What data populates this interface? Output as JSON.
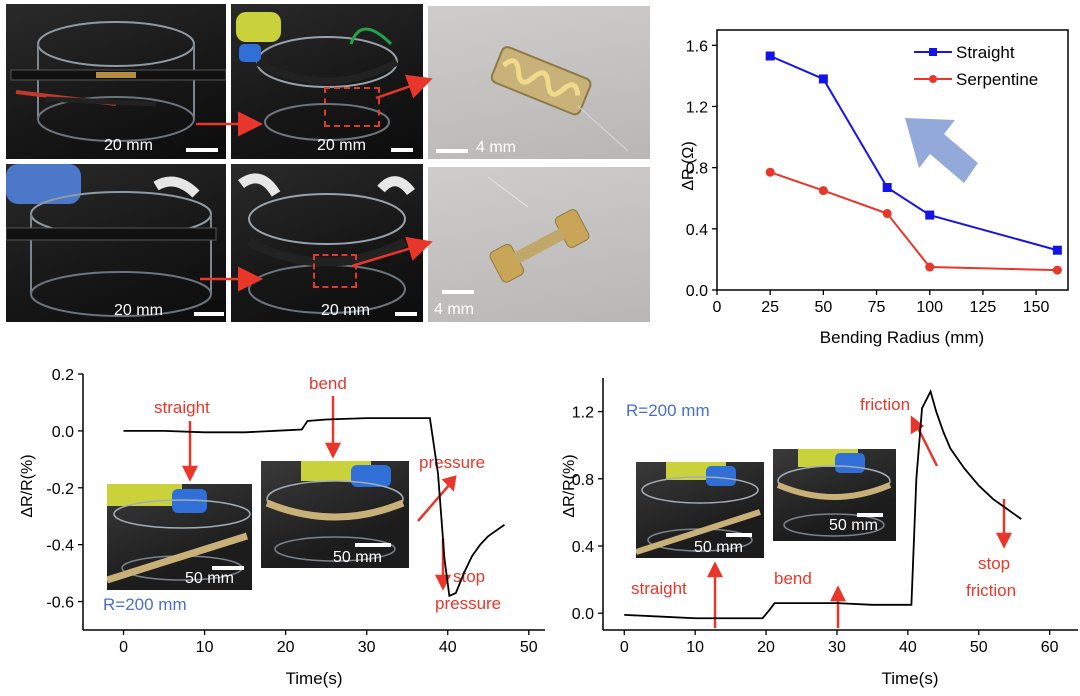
{
  "photos": {
    "scale_top_left": "20 mm",
    "scale_top_mid": "20 mm",
    "scale_top_right": "4 mm",
    "scale_bottom_left": "20 mm",
    "scale_bottom_mid": "20 mm",
    "scale_bottom_right": "4 mm"
  },
  "insets": {
    "left_a_scale": "50 mm",
    "left_b_scale": "50 mm",
    "right_a_scale": "50 mm",
    "right_b_scale": "50 mm"
  },
  "colors": {
    "straight": "#1414e6",
    "serpentine": "#e8362a",
    "annotation": "#e8362a",
    "radius_text": "#4a6fc8",
    "trace": "#000000",
    "arrow_shade": "#7f9ad3"
  },
  "chart_data": [
    {
      "type": "line",
      "xlabel": "Bending Radius (mm)",
      "ylabel": "ΔR (Ω)",
      "xlim": [
        0,
        165
      ],
      "ylim": [
        0,
        1.7
      ],
      "xticks": [
        "0",
        "25",
        "50",
        "75",
        "100",
        "125",
        "150"
      ],
      "yticks": [
        "0.0",
        "0.4",
        "0.8",
        "1.2",
        "1.6"
      ],
      "legend_position": "top-right",
      "series": [
        {
          "name": "Straight",
          "marker": "square",
          "x": [
            25,
            50,
            80,
            100,
            160
          ],
          "y": [
            1.53,
            1.38,
            0.67,
            0.49,
            0.26
          ]
        },
        {
          "name": "Serpentine",
          "marker": "circle",
          "x": [
            25,
            50,
            80,
            100,
            160
          ],
          "y": [
            0.77,
            0.65,
            0.5,
            0.15,
            0.13
          ]
        }
      ]
    },
    {
      "type": "line",
      "xlabel": "Time(s)",
      "ylabel": "ΔR/R(%)",
      "xlim": [
        -5,
        52
      ],
      "ylim": [
        -0.7,
        0.2
      ],
      "xticks": [
        "0",
        "10",
        "20",
        "30",
        "40",
        "50"
      ],
      "yticks": [
        "0.2",
        "0.0",
        "-0.2",
        "-0.4",
        "-0.6"
      ],
      "radius_label": "R=200 mm",
      "annotations": [
        "straight",
        "bend",
        "pressure",
        "stop",
        "pressure"
      ],
      "series": [
        {
          "x": [
            0,
            5,
            10,
            15,
            20,
            22,
            22.7,
            25,
            30,
            35,
            37.8,
            38.8,
            39.6,
            40.2,
            41,
            42,
            43,
            44,
            45,
            46,
            47
          ],
          "y": [
            0.0,
            0.0,
            -0.005,
            -0.005,
            0.002,
            0.005,
            0.035,
            0.04,
            0.045,
            0.045,
            0.045,
            -0.15,
            -0.45,
            -0.58,
            -0.57,
            -0.5,
            -0.44,
            -0.4,
            -0.37,
            -0.35,
            -0.33
          ]
        }
      ]
    },
    {
      "type": "line",
      "xlabel": "Time(s)",
      "ylabel": "ΔR/R(%)",
      "xlim": [
        -3,
        64
      ],
      "ylim": [
        -0.1,
        1.4
      ],
      "xticks": [
        "0",
        "10",
        "20",
        "30",
        "40",
        "50",
        "60"
      ],
      "yticks": [
        "0.0",
        "0.4",
        "0.8",
        "1.2"
      ],
      "radius_label": "R=200 mm",
      "annotations": [
        "friction",
        "straight",
        "bend",
        "stop",
        "friction"
      ],
      "series": [
        {
          "x": [
            0,
            5,
            10,
            15,
            19.5,
            20.5,
            21.2,
            25,
            30,
            35,
            40.5,
            41.2,
            42,
            43.2,
            44,
            45,
            46,
            48,
            50,
            52,
            54,
            56
          ],
          "y": [
            -0.01,
            -0.02,
            -0.03,
            -0.03,
            -0.03,
            0.02,
            0.06,
            0.06,
            0.06,
            0.05,
            0.05,
            0.8,
            1.22,
            1.32,
            1.2,
            1.08,
            0.98,
            0.86,
            0.76,
            0.68,
            0.62,
            0.56
          ]
        }
      ]
    }
  ]
}
